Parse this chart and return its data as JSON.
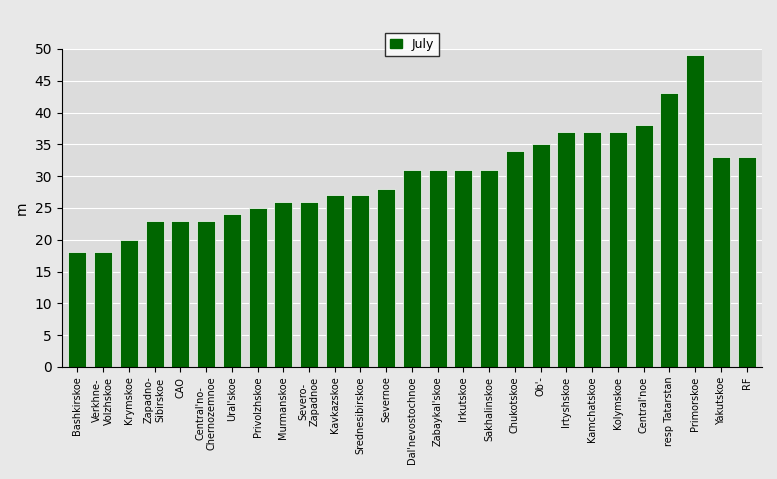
{
  "categories": [
    "Bashkirskoe",
    "Verkhne-\nVolzhskoe",
    "Krymskoe",
    "Zapadno-\nSibirskoe",
    "CAO",
    "Central'no-\nChernozemnoe",
    "Ural'skoe",
    "Privolzhskoe",
    "Murmanskoe",
    "Severo-\nZapadnoe",
    "Kavkazskoe",
    "Srednesibirskoe",
    "Severnoe",
    "Dal'nevostochnoe",
    "Zabaykal'skoe",
    "Irkutskoe",
    "Sakhalinskoe",
    "Chukotskoe",
    "Ob'-",
    "Irtyshskoe",
    "Kamchatskoe",
    "Kolymskoe",
    "Central'noe",
    "resp Tatarstan",
    "Primorskoe",
    "Yakutskoe",
    "RF"
  ],
  "values": [
    18,
    18,
    20,
    23,
    23,
    23,
    24,
    25,
    26,
    26,
    27,
    27,
    28,
    31,
    31,
    31,
    31,
    34,
    35,
    37,
    37,
    37,
    38,
    43,
    49,
    33,
    33
  ],
  "bar_color": "#006600",
  "ylabel": "m",
  "ylim": [
    0,
    50
  ],
  "yticks": [
    0,
    5,
    10,
    15,
    20,
    25,
    30,
    35,
    40,
    45,
    50
  ],
  "legend_label": "July",
  "background_color": "#e8e8e8",
  "plot_bg_color": "#dcdcdc"
}
